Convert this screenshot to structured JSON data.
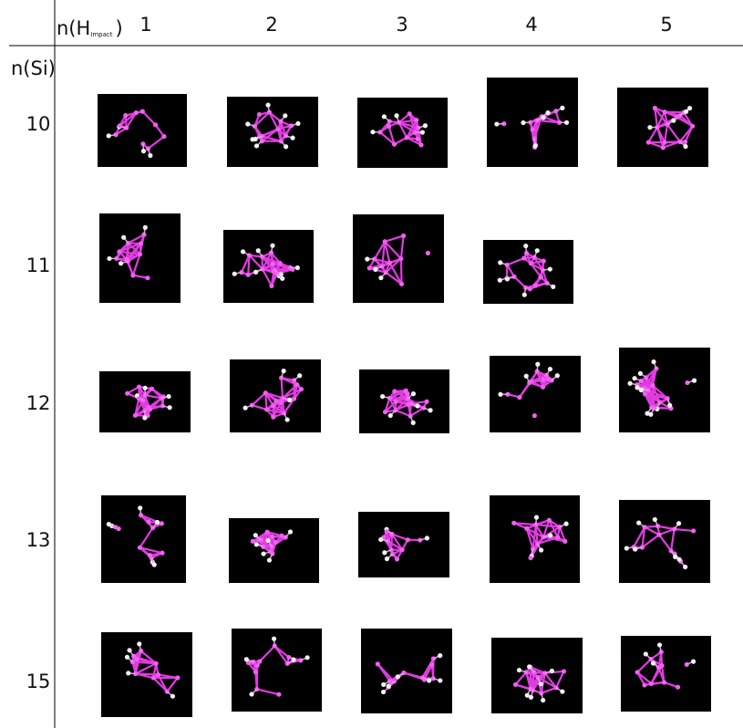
{
  "header": {
    "column_label": {
      "base": "n(H",
      "subscript": "Impact",
      "close": ")"
    },
    "row_label": "n(Si)"
  },
  "columns": [
    1,
    2,
    3,
    4,
    5
  ],
  "rows": [
    10,
    11,
    12,
    13,
    15
  ]
}
